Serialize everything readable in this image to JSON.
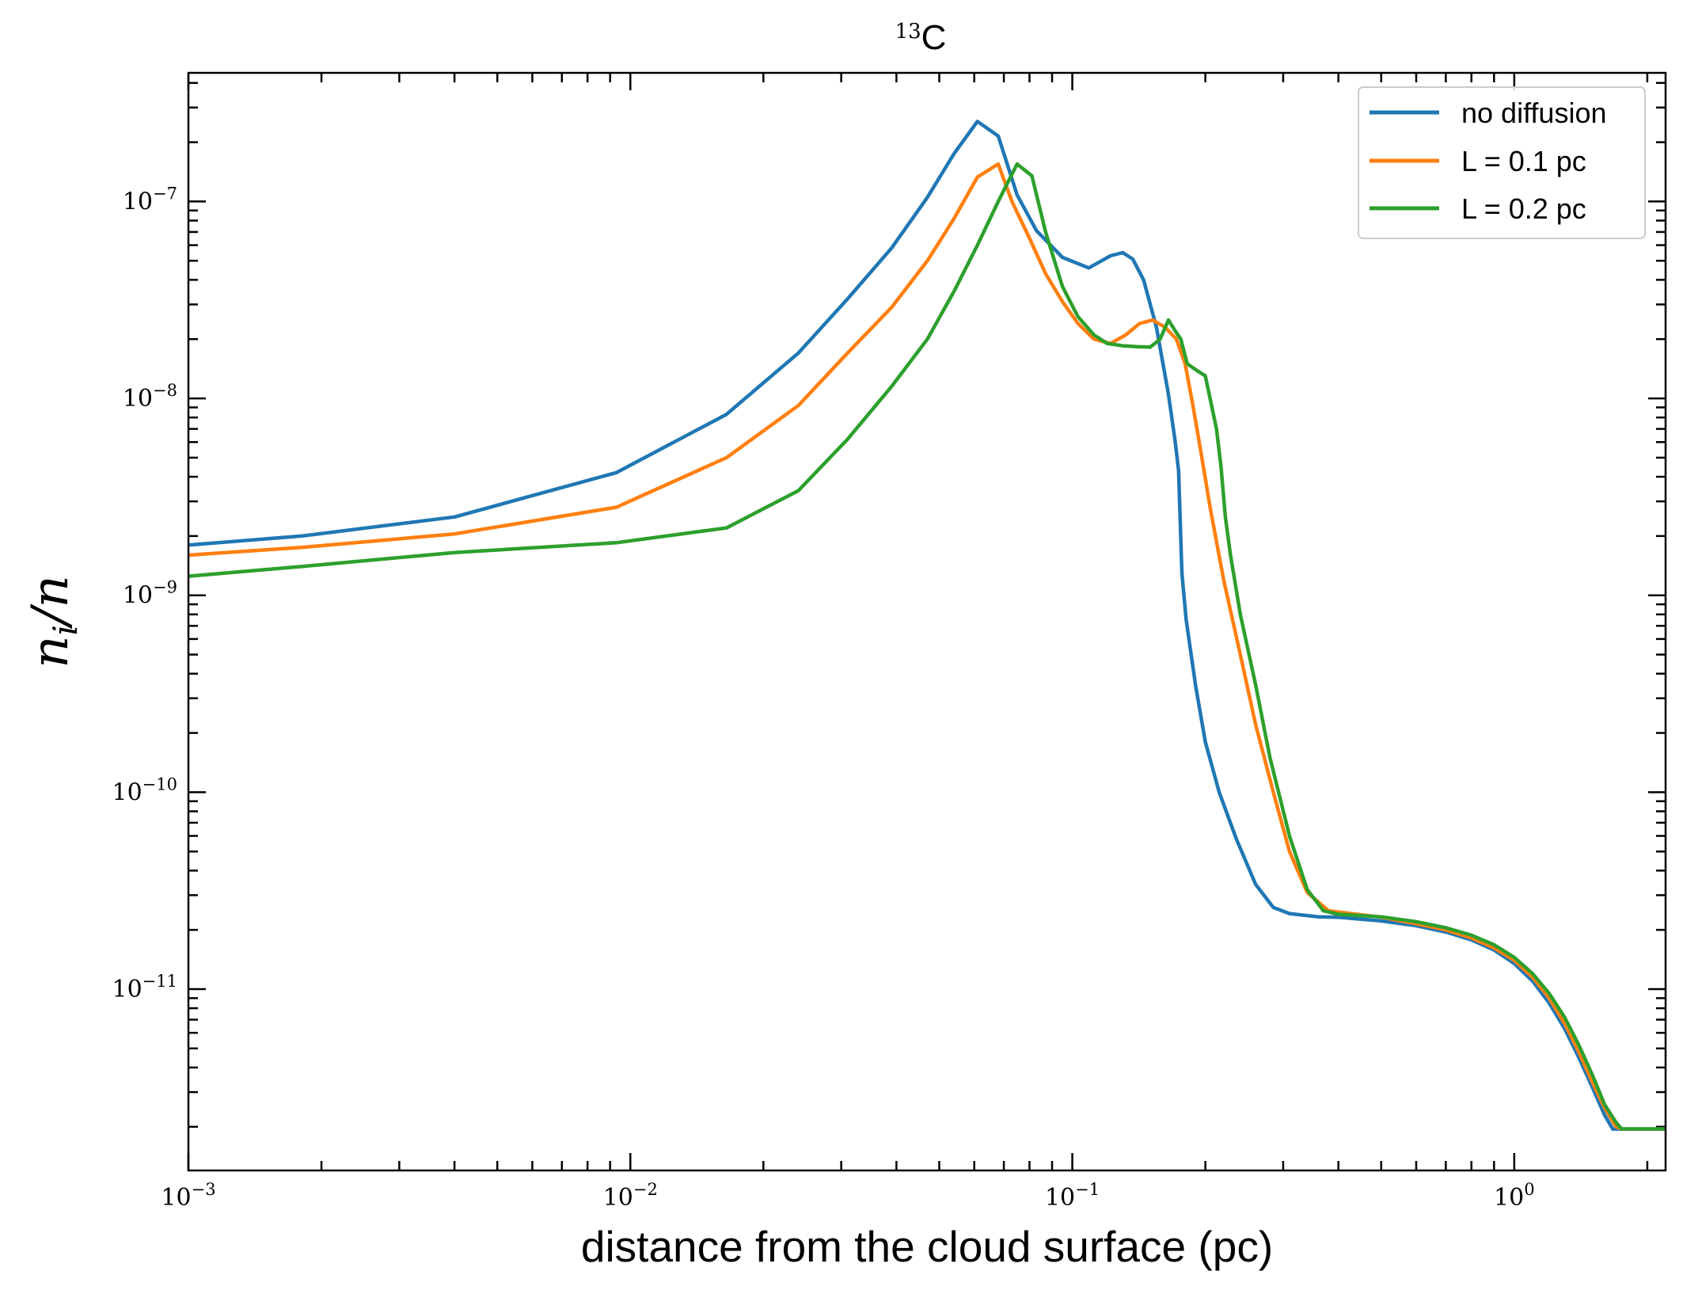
{
  "chart_data": {
    "type": "line",
    "title_sup": "13",
    "title_main": "C",
    "xlabel": "distance from the cloud surface (pc)",
    "ylabel": "n_i/n",
    "xscale": "log",
    "yscale": "log",
    "xlim": [
      0.001,
      2.2
    ],
    "ylim": [
      1.2e-12,
      4.5e-07
    ],
    "grid": false,
    "legend_position": "top-right",
    "x_ticks": [
      {
        "value": 0.001,
        "base": "10",
        "exp": "−3"
      },
      {
        "value": 0.01,
        "base": "10",
        "exp": "−2"
      },
      {
        "value": 0.1,
        "base": "10",
        "exp": "−1"
      },
      {
        "value": 1,
        "base": "10",
        "exp": "0"
      }
    ],
    "y_ticks": [
      {
        "value": 1e-11,
        "base": "10",
        "exp": "−11"
      },
      {
        "value": 1e-10,
        "base": "10",
        "exp": "−10"
      },
      {
        "value": 1e-09,
        "base": "10",
        "exp": "−9"
      },
      {
        "value": 1e-08,
        "base": "10",
        "exp": "−8"
      },
      {
        "value": 1e-07,
        "base": "10",
        "exp": "−7"
      }
    ],
    "series": [
      {
        "name": "no diffusion",
        "color": "#1f77b4",
        "x": [
          0.001,
          0.0018,
          0.004,
          0.0093,
          0.0165,
          0.024,
          0.031,
          0.039,
          0.047,
          0.054,
          0.061,
          0.068,
          0.075,
          0.083,
          0.095,
          0.109,
          0.122,
          0.13,
          0.137,
          0.145,
          0.155,
          0.165,
          0.171,
          0.174,
          0.177,
          0.181,
          0.19,
          0.2,
          0.215,
          0.235,
          0.26,
          0.285,
          0.31,
          0.36,
          0.4,
          0.5,
          0.6,
          0.7,
          0.8,
          0.9,
          1.0,
          1.1,
          1.2,
          1.3,
          1.4,
          1.5,
          1.6,
          1.67,
          1.72,
          1.8,
          2.0,
          2.2
        ],
        "y": [
          1.8e-09,
          2e-09,
          2.5e-09,
          4.2e-09,
          8.3e-09,
          1.7e-08,
          3.2e-08,
          5.8e-08,
          1.05e-07,
          1.75e-07,
          2.55e-07,
          2.15e-07,
          1.08e-07,
          7.1e-08,
          5.2e-08,
          4.6e-08,
          5.3e-08,
          5.5e-08,
          5.1e-08,
          4e-08,
          2.3e-08,
          1.05e-08,
          6e-09,
          4.3e-09,
          1.3e-09,
          7.5e-10,
          3.5e-10,
          1.8e-10,
          1e-10,
          5.8e-11,
          3.4e-11,
          2.6e-11,
          2.42e-11,
          2.33e-11,
          2.32e-11,
          2.22e-11,
          2.1e-11,
          1.95e-11,
          1.78e-11,
          1.58e-11,
          1.35e-11,
          1.1e-11,
          8.5e-12,
          6.3e-12,
          4.5e-12,
          3.2e-12,
          2.3e-12,
          1.95e-12,
          1.95e-12,
          1.95e-12,
          1.95e-12,
          1.95e-12
        ]
      },
      {
        "name": "L = 0.1 pc",
        "color": "#ff7f0e",
        "x": [
          0.001,
          0.0018,
          0.004,
          0.0093,
          0.0165,
          0.024,
          0.031,
          0.039,
          0.047,
          0.054,
          0.061,
          0.068,
          0.073,
          0.08,
          0.087,
          0.095,
          0.103,
          0.112,
          0.122,
          0.132,
          0.142,
          0.152,
          0.162,
          0.172,
          0.18,
          0.187,
          0.195,
          0.205,
          0.22,
          0.24,
          0.26,
          0.285,
          0.31,
          0.34,
          0.38,
          0.5,
          0.6,
          0.7,
          0.8,
          0.9,
          1.0,
          1.1,
          1.2,
          1.3,
          1.4,
          1.5,
          1.6,
          1.7,
          1.75,
          1.8,
          2.0,
          2.2
        ],
        "y": [
          1.6e-09,
          1.75e-09,
          2.05e-09,
          2.8e-09,
          5e-09,
          9.2e-09,
          1.7e-08,
          2.9e-08,
          5e-08,
          8.2e-08,
          1.33e-07,
          1.55e-07,
          1e-07,
          6.5e-08,
          4.3e-08,
          3.1e-08,
          2.4e-08,
          2e-08,
          1.9e-08,
          2.1e-08,
          2.4e-08,
          2.5e-08,
          2.3e-08,
          2e-08,
          1.5e-08,
          9.5e-09,
          5.5e-09,
          2.8e-09,
          1.2e-09,
          5e-10,
          2.2e-10,
          1e-10,
          5e-11,
          3.1e-11,
          2.5e-11,
          2.32e-11,
          2.15e-11,
          2e-11,
          1.82e-11,
          1.62e-11,
          1.4e-11,
          1.15e-11,
          9e-12,
          6.7e-12,
          4.8e-12,
          3.4e-12,
          2.5e-12,
          2e-12,
          1.95e-12,
          1.95e-12,
          1.95e-12,
          1.95e-12
        ]
      },
      {
        "name": "L = 0.2 pc",
        "color": "#2ca02c",
        "x": [
          0.001,
          0.0018,
          0.004,
          0.0093,
          0.0165,
          0.024,
          0.031,
          0.039,
          0.047,
          0.054,
          0.061,
          0.068,
          0.075,
          0.081,
          0.087,
          0.095,
          0.103,
          0.112,
          0.12,
          0.13,
          0.14,
          0.15,
          0.158,
          0.165,
          0.171,
          0.176,
          0.182,
          0.19,
          0.2,
          0.212,
          0.217,
          0.222,
          0.228,
          0.24,
          0.26,
          0.28,
          0.31,
          0.34,
          0.37,
          0.4,
          0.5,
          0.6,
          0.7,
          0.8,
          0.9,
          1.0,
          1.1,
          1.2,
          1.3,
          1.4,
          1.5,
          1.6,
          1.7,
          1.75,
          1.8,
          2.0,
          2.2
        ],
        "y": [
          1.25e-09,
          1.4e-09,
          1.65e-09,
          1.85e-09,
          2.2e-09,
          3.4e-09,
          6.2e-09,
          1.15e-08,
          2e-08,
          3.5e-08,
          6e-08,
          1e-07,
          1.55e-07,
          1.35e-07,
          7e-08,
          3.7e-08,
          2.6e-08,
          2.1e-08,
          1.9e-08,
          1.85e-08,
          1.83e-08,
          1.82e-08,
          2e-08,
          2.5e-08,
          2.2e-08,
          2e-08,
          1.5e-08,
          1.4e-08,
          1.3e-08,
          7e-09,
          4.5e-09,
          2.5e-09,
          1.6e-09,
          8e-10,
          3.5e-10,
          1.5e-10,
          6e-11,
          3.2e-11,
          2.5e-11,
          2.4e-11,
          2.33e-11,
          2.2e-11,
          2.05e-11,
          1.88e-11,
          1.68e-11,
          1.45e-11,
          1.2e-11,
          9.5e-12,
          7.2e-12,
          5.2e-12,
          3.7e-12,
          2.6e-12,
          2.1e-12,
          1.95e-12,
          1.95e-12,
          1.95e-12,
          1.95e-12
        ]
      }
    ]
  }
}
